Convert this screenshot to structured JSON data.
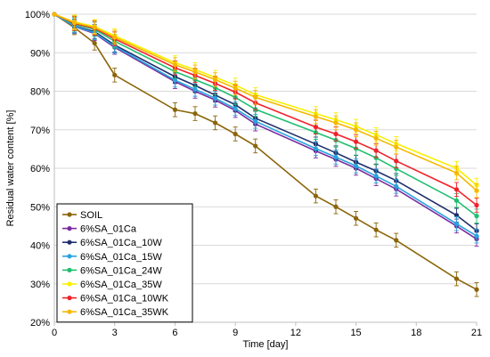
{
  "chart_data": {
    "type": "line",
    "title": "",
    "xlabel": "Time [day]",
    "ylabel": "Residual water content [%]",
    "xlim": [
      0,
      21
    ],
    "ylim": [
      20,
      100
    ],
    "x_ticks": [
      0,
      3,
      6,
      9,
      12,
      15,
      18,
      21
    ],
    "y_ticks": [
      20,
      30,
      40,
      50,
      60,
      70,
      80,
      90,
      100
    ],
    "y_tick_labels": [
      "20%",
      "30%",
      "40%",
      "50%",
      "60%",
      "70%",
      "80%",
      "90%",
      "100%"
    ],
    "grid": "horizontal",
    "legend_position": "bottom-left",
    "x": [
      0,
      1,
      2,
      3,
      6,
      7,
      8,
      9,
      10,
      13,
      14,
      15,
      16,
      17,
      20,
      21
    ],
    "series": [
      {
        "name": "SOIL",
        "color": "#8B6508",
        "marker": "circle",
        "values": [
          100,
          96.5,
          92.5,
          84.2,
          75.2,
          74.2,
          71.8,
          68.9,
          65.8,
          52.8,
          50.0,
          47.0,
          44.0,
          41.3,
          31.3,
          28.5
        ]
      },
      {
        "name": "6%SA_01Ca",
        "color": "#7B2C9E",
        "marker": "circle",
        "values": [
          100,
          96.8,
          95.0,
          91.4,
          82.5,
          80.0,
          77.7,
          75.0,
          71.5,
          64.5,
          62.3,
          60.0,
          57.3,
          54.6,
          45.0,
          41.6
        ]
      },
      {
        "name": "6%SA_01Ca_10W",
        "color": "#1F2F6B",
        "marker": "circle",
        "values": [
          100,
          97.0,
          95.5,
          92.0,
          83.8,
          81.5,
          79.0,
          76.5,
          73.0,
          66.3,
          64.0,
          61.6,
          59.3,
          56.8,
          47.8,
          43.8
        ]
      },
      {
        "name": "6%SA_01Ca_15W",
        "color": "#29A3DE",
        "marker": "circle",
        "values": [
          100,
          96.9,
          95.2,
          91.7,
          82.9,
          80.5,
          78.2,
          75.5,
          72.2,
          65.1,
          62.9,
          60.6,
          58.0,
          55.3,
          45.6,
          42.4
        ]
      },
      {
        "name": "6%SA_01Ca_24W",
        "color": "#1FBF70",
        "marker": "circle",
        "values": [
          100,
          97.4,
          96.1,
          93.0,
          85.1,
          83.0,
          80.9,
          78.4,
          75.3,
          69.3,
          67.3,
          65.1,
          62.7,
          59.9,
          51.6,
          47.6
        ]
      },
      {
        "name": "6%SA_01Ca_35W",
        "color": "#F7F000",
        "marker": "circle",
        "values": [
          100,
          98.0,
          96.8,
          94.4,
          87.4,
          85.6,
          83.6,
          81.6,
          79.1,
          74.2,
          72.6,
          70.9,
          68.7,
          66.4,
          60.0,
          55.6
        ]
      },
      {
        "name": "6%SA_01Ca_10WK",
        "color": "#F2222A",
        "marker": "circle",
        "values": [
          100,
          97.6,
          96.4,
          93.6,
          86.1,
          84.1,
          82.0,
          79.8,
          77.0,
          70.7,
          68.9,
          66.9,
          64.6,
          61.9,
          54.5,
          50.4
        ]
      },
      {
        "name": "6%SA_01Ca_35WK",
        "color": "#F5B800",
        "marker": "circle",
        "values": [
          100,
          97.8,
          96.6,
          94.0,
          86.9,
          85.0,
          83.0,
          80.8,
          78.4,
          73.4,
          71.8,
          70.0,
          67.8,
          65.5,
          58.8,
          54.2
        ]
      }
    ],
    "error_bars": true,
    "error_magnitude": 1.8
  }
}
